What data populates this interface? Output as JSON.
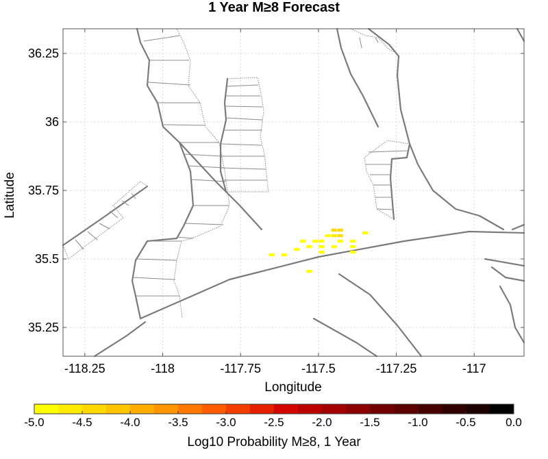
{
  "chart_data": {
    "type": "heatmap",
    "title": "1 Year M≥8 Forecast",
    "xlabel": "Longitude",
    "ylabel": "Latitude",
    "xlim": [
      -118.32,
      -116.84
    ],
    "ylim": [
      35.145,
      36.34
    ],
    "xticks": [
      -118.25,
      -118,
      -117.75,
      -117.5,
      -117.25,
      -117
    ],
    "xtick_labels": [
      "-118.25",
      "-118",
      "-117.75",
      "-117.5",
      "-117.25",
      "-117"
    ],
    "yticks": [
      35.25,
      35.5,
      35.75,
      36,
      36.25
    ],
    "ytick_labels": [
      "35.25",
      "35.5",
      "35.75",
      "36",
      "36.25"
    ],
    "grid": true,
    "cell_size_deg": 0.02,
    "cells": [
      {
        "lon": -117.45,
        "lat": 35.605,
        "log10p": -4.45
      },
      {
        "lon": -117.43,
        "lat": 35.605,
        "log10p": -4.35
      },
      {
        "lon": -117.47,
        "lat": 35.585,
        "log10p": -4.95
      },
      {
        "lon": -117.45,
        "lat": 35.585,
        "log10p": -4.7
      },
      {
        "lon": -117.43,
        "lat": 35.585,
        "log10p": -4.5
      },
      {
        "lon": -117.51,
        "lat": 35.565,
        "log10p": -5.0
      },
      {
        "lon": -117.49,
        "lat": 35.565,
        "log10p": -4.95
      },
      {
        "lon": -117.43,
        "lat": 35.565,
        "log10p": -4.8
      },
      {
        "lon": -117.39,
        "lat": 35.565,
        "log10p": -5.0
      },
      {
        "lon": -117.55,
        "lat": 35.565,
        "log10p": -5.0
      },
      {
        "lon": -117.49,
        "lat": 35.545,
        "log10p": -5.0
      },
      {
        "lon": -117.45,
        "lat": 35.545,
        "log10p": -4.95
      },
      {
        "lon": -117.53,
        "lat": 35.545,
        "log10p": -5.0
      },
      {
        "lon": -117.39,
        "lat": 35.545,
        "log10p": -5.0
      },
      {
        "lon": -117.57,
        "lat": 35.535,
        "log10p": -5.0
      },
      {
        "lon": -117.49,
        "lat": 35.525,
        "log10p": -5.0
      },
      {
        "lon": -117.39,
        "lat": 35.525,
        "log10p": -5.0
      },
      {
        "lon": -117.61,
        "lat": 35.515,
        "log10p": -5.0
      },
      {
        "lon": -117.65,
        "lat": 35.515,
        "log10p": -5.0
      },
      {
        "lon": -117.35,
        "lat": 35.595,
        "log10p": -5.0
      },
      {
        "lon": -117.53,
        "lat": 35.455,
        "log10p": -5.0
      }
    ],
    "colorbar": {
      "label": "Log10 Probability M≥8, 1 Year",
      "range": [
        -5.0,
        0.0
      ],
      "ticks": [
        "-5.0",
        "-4.5",
        "-4.0",
        "-3.5",
        "-3.0",
        "-2.5",
        "-2.0",
        "-1.5",
        "-1.0",
        "-0.5",
        "0.0"
      ],
      "colors": [
        "#ffff00",
        "#ffec00",
        "#ffd800",
        "#ffc400",
        "#ffac00",
        "#ff9400",
        "#ff7800",
        "#ff5c00",
        "#f43e00",
        "#e42000",
        "#d40600",
        "#bb0000",
        "#a30000",
        "#8a0000",
        "#730000",
        "#5c0000",
        "#460000",
        "#300000",
        "#1c0000",
        "#000000"
      ]
    }
  }
}
